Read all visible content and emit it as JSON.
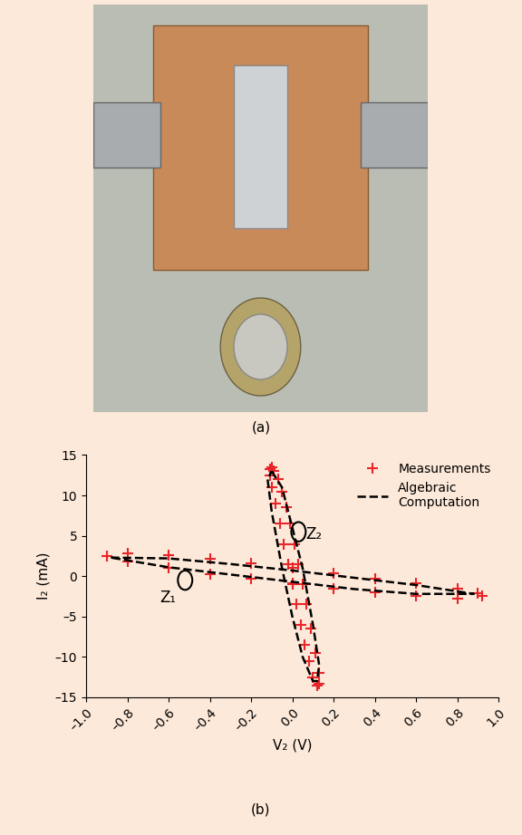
{
  "panel_a": {
    "label": "(a)"
  },
  "chart_data": {
    "type": "line",
    "label": "(b)",
    "x_label": "V₂ (V)",
    "y_label": "I₂ (mA)",
    "xlim": [
      -1.0,
      1.0
    ],
    "xticks": [
      {
        "value": -1.0,
        "label": "–1.0"
      },
      {
        "value": -0.8,
        "label": "–0.8"
      },
      {
        "value": -0.6,
        "label": "–0.6"
      },
      {
        "value": -0.4,
        "label": "–0.4"
      },
      {
        "value": -0.2,
        "label": "–0.2"
      },
      0.0,
      0.2,
      0.4,
      0.6,
      0.8,
      1.0
    ],
    "ylim": [
      -15,
      15
    ],
    "yticks": [
      {
        "value": -15,
        "label": "–15"
      },
      {
        "value": -10,
        "label": "–10"
      },
      {
        "value": -5,
        "label": "–5"
      },
      0,
      5,
      10,
      15
    ],
    "legend": "upper right",
    "series": [
      {
        "name": "Measurements",
        "type": "scatter",
        "color": "#e8262a",
        "marker": "plus",
        "x": [
          -0.9,
          -0.8,
          -0.6,
          -0.4,
          -0.2,
          0.0,
          0.2,
          0.4,
          0.6,
          0.8,
          0.9,
          0.92,
          0.8,
          0.6,
          0.4,
          0.2,
          0.0,
          -0.2,
          -0.4,
          -0.6,
          -0.8,
          -0.9,
          null,
          -0.1,
          -0.09,
          -0.07,
          -0.05,
          -0.03,
          -0.01,
          0.01,
          0.03,
          0.05,
          0.07,
          0.09,
          0.11,
          0.13,
          0.13,
          0.12,
          0.1,
          0.08,
          0.06,
          0.04,
          0.02,
          0.0,
          -0.02,
          -0.04,
          -0.06,
          -0.08,
          -0.1,
          -0.11,
          -0.11
        ],
        "values": [
          2.5,
          2.8,
          2.6,
          2.1,
          1.6,
          1.0,
          0.4,
          -0.3,
          -0.9,
          -1.6,
          -2.1,
          -2.4,
          -2.8,
          -2.5,
          -2.0,
          -1.5,
          -0.9,
          -0.3,
          0.3,
          1.0,
          1.8,
          2.5,
          null,
          13.5,
          13.0,
          12.0,
          10.5,
          8.5,
          6.5,
          4.0,
          1.5,
          -1.0,
          -3.5,
          -6.5,
          -9.5,
          -12.0,
          -13.3,
          -13.5,
          -12.5,
          -10.5,
          -8.5,
          -6.0,
          -3.5,
          -1.0,
          1.5,
          4.0,
          6.5,
          9.0,
          11.0,
          12.5,
          13.3
        ]
      },
      {
        "name": "Algebraic\nComputation",
        "type": "line",
        "color": "#000000",
        "line_style": "dashed",
        "x": [
          -0.88,
          -0.6,
          -0.3,
          0.0,
          0.3,
          0.6,
          0.88,
          0.6,
          0.3,
          0.0,
          -0.3,
          -0.6,
          -0.88,
          null,
          -0.1,
          -0.05,
          0.0,
          0.05,
          0.1,
          0.13,
          0.12,
          0.1,
          0.05,
          0.0,
          -0.05,
          -0.1,
          -0.12,
          -0.1
        ],
        "values": [
          2.3,
          2.2,
          1.5,
          0.7,
          -0.2,
          -1.1,
          -2.2,
          -2.2,
          -1.6,
          -0.7,
          0.2,
          1.1,
          2.3,
          null,
          13.0,
          11.0,
          6.0,
          1.0,
          -6.0,
          -11.0,
          -13.0,
          -13.0,
          -10.0,
          -5.0,
          1.0,
          8.0,
          12.0,
          13.0
        ]
      }
    ],
    "annotations": [
      {
        "text": "Z₁",
        "x": -0.52,
        "y": -0.5
      },
      {
        "text": "Z₂",
        "x": 0.03,
        "y": 5.5
      }
    ]
  }
}
